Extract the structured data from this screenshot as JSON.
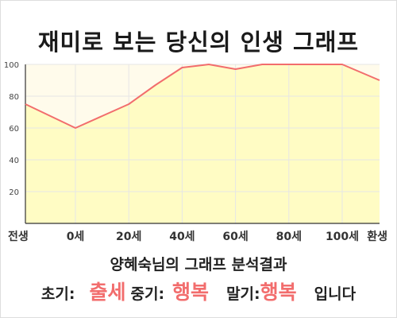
{
  "title": "재미로 보는 당신의 인생 그래프",
  "chart_data": {
    "type": "area",
    "x_labels": [
      "전생",
      "0세",
      "20세",
      "40세",
      "60세",
      "80세",
      "100세",
      "환생"
    ],
    "y_ticks": [
      "20",
      "40",
      "60",
      "80",
      "100"
    ],
    "ylim": [
      0,
      100
    ],
    "grid": true,
    "series": [
      {
        "x": [
          "전생",
          "0세",
          "20세",
          "30세",
          "40세",
          "50세",
          "60세",
          "70세",
          "80세",
          "90세",
          "100세",
          "환생"
        ],
        "values": [
          75,
          60,
          75,
          87,
          98,
          100,
          97,
          100,
          100,
          100,
          100,
          90
        ]
      }
    ],
    "colors": {
      "line": "#f26d6d",
      "area": "#fffcc4",
      "area_top": "#fffbeb",
      "grid": "#e6e6e6"
    }
  },
  "analysis": {
    "subtitle": "양혜숙님의 그래프 분석결과",
    "early_label": "초기:",
    "early_value": "출세",
    "mid_label": "중기:",
    "mid_value": "행복",
    "late_label": "말기:",
    "late_value": "행복",
    "ending": "입니다"
  }
}
